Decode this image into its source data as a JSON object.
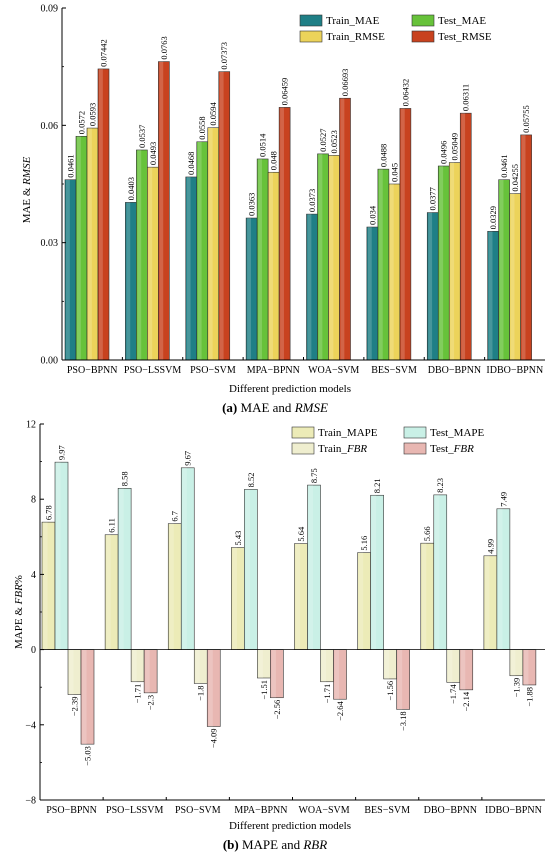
{
  "colors": {
    "train_mae": "#1f7f86",
    "test_mae": "#67c23a",
    "train_rmse": "#ecd35a",
    "test_rmse": "#c8421f",
    "train_mape": "#ecebb7",
    "test_mape": "#c9f0e6",
    "train_fbr": "#efeecf",
    "test_fbr": "#e8b7b2"
  },
  "captions": {
    "a_prefix": "(a)",
    "a_text": "MAE and",
    "a_italic": "RMSE",
    "b_prefix": "(b)",
    "b_text": "MAPE and",
    "b_italic": "RBR"
  },
  "chart_data": [
    {
      "type": "bar",
      "title": "",
      "xlabel": "Different prediction models",
      "ylabel_prefix": "MAE &",
      "ylabel_italic": "RMSE",
      "ylim": [
        0,
        0.09
      ],
      "yticks": [
        "0.00",
        "0.03",
        "0.06",
        "0.09"
      ],
      "ytick_values": [
        0,
        0.03,
        0.06,
        0.09
      ],
      "legend_position": "top-right",
      "categories": [
        "PSO−BPNN",
        "PSO−LSSVM",
        "PSO−SVM",
        "MPA−BPNN",
        "WOA−SVM",
        "BES−SVM",
        "DBO−BPNN",
        "IDBO−BPNN"
      ],
      "series": [
        {
          "name": "Train_MAE",
          "values": [
            0.0461,
            0.0403,
            0.0468,
            0.0363,
            0.0373,
            0.034,
            0.0377,
            0.0329
          ],
          "labels": [
            "0.0461",
            "0.0403",
            "0.0468",
            "0.0363",
            "0.0373",
            "0.034",
            "0.0377",
            "0.0329"
          ]
        },
        {
          "name": "Test_MAE",
          "values": [
            0.0572,
            0.0537,
            0.0558,
            0.0514,
            0.0527,
            0.0488,
            0.0496,
            0.0461
          ],
          "labels": [
            "0.0572",
            "0.0537",
            "0.0558",
            "0.0514",
            "0.0527",
            "0.0488",
            "0.0496",
            "0.0461"
          ]
        },
        {
          "name": "Train_RMSE",
          "values": [
            0.0593,
            0.0493,
            0.0594,
            0.048,
            0.0523,
            0.045,
            0.05049,
            0.04255
          ],
          "labels": [
            "0.0593",
            "0.0493",
            "0.0594",
            "0.048",
            "0.0523",
            "0.045",
            "0.05049",
            "0.04255"
          ]
        },
        {
          "name": "Test_RMSE",
          "values": [
            0.07442,
            0.0763,
            0.07373,
            0.06459,
            0.06693,
            0.06432,
            0.06311,
            0.05755
          ],
          "labels": [
            "0.07442",
            "0.0763",
            "0.07373",
            "0.06459",
            "0.06693",
            "0.06432",
            "0.06311",
            "0.05755"
          ]
        }
      ]
    },
    {
      "type": "bar",
      "title": "",
      "xlabel": "Different prediction models",
      "ylabel_prefix": "MAPE &",
      "ylabel_italic": "FBR",
      "ylabel_suffix": "%",
      "ylim": [
        -8,
        12
      ],
      "yticks": [
        "−8",
        "−4",
        "0",
        "4",
        "8",
        "12"
      ],
      "ytick_values": [
        -8,
        -4,
        0,
        4,
        8,
        12
      ],
      "legend_position": "top-right",
      "categories": [
        "PSO−BPNN",
        "PSO−LSSVM",
        "PSO−SVM",
        "MPA−BPNN",
        "WOA−SVM",
        "BES−SVM",
        "DBO−BPNN",
        "IDBO−BPNN"
      ],
      "series": [
        {
          "name": "Train_MAPE",
          "values": [
            6.78,
            6.11,
            6.7,
            5.43,
            5.64,
            5.16,
            5.66,
            4.99
          ],
          "labels": [
            "6.78",
            "6.11",
            "6.7",
            "5.43",
            "5.64",
            "5.16",
            "5.66",
            "4.99"
          ]
        },
        {
          "name": "Test_MAPE",
          "values": [
            9.97,
            8.58,
            9.67,
            8.52,
            8.75,
            8.21,
            8.23,
            7.49
          ],
          "labels": [
            "9.97",
            "8.58",
            "9.67",
            "8.52",
            "8.75",
            "8.21",
            "8.23",
            "7.49"
          ]
        },
        {
          "name": "Train_FBR",
          "name_prefix": "Train_",
          "name_italic": "FBR",
          "values": [
            -2.39,
            -1.71,
            -1.8,
            -1.51,
            -1.71,
            -1.56,
            -1.74,
            -1.39
          ],
          "labels": [
            "−2.39",
            "−1.71",
            "−1.8",
            "−1.51",
            "−1.71",
            "−1.56",
            "−1.74",
            "−1.39"
          ]
        },
        {
          "name": "Test_FBR",
          "name_prefix": "Test_",
          "name_italic": "FBR",
          "values": [
            -5.03,
            -2.3,
            -4.09,
            -2.56,
            -2.64,
            -3.18,
            -2.14,
            -1.88
          ],
          "labels": [
            "−5.03",
            "−2.3",
            "−4.09",
            "−2.56",
            "−2.64",
            "−3.18",
            "−2.14",
            "−1.88"
          ]
        }
      ]
    }
  ]
}
